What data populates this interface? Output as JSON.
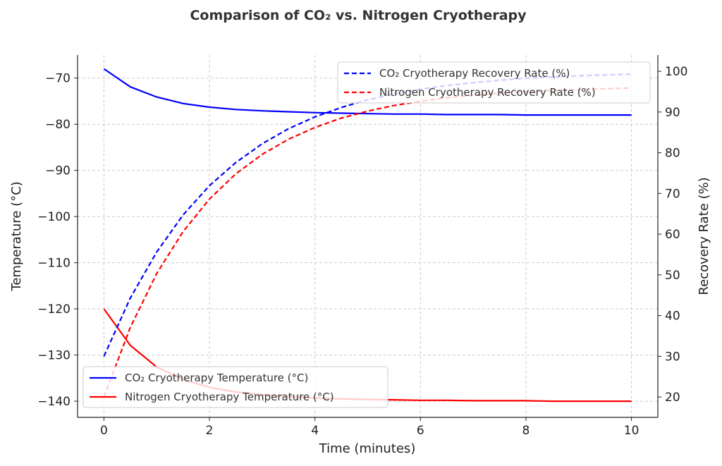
{
  "chart_data": {
    "type": "line",
    "title": "Comparison of CO₂ vs. Nitrogen Cryotherapy",
    "xlabel": "Time (minutes)",
    "ylabel_left": "Temperature (°C)",
    "ylabel_right": "Recovery Rate (%)",
    "xlim": [
      -0.5,
      10.5
    ],
    "ylim_left": [
      -143.5,
      -65
    ],
    "ylim_right": [
      15,
      104
    ],
    "x_ticks": [
      0,
      2,
      4,
      6,
      8,
      10
    ],
    "y_left_ticks": [
      -140,
      -130,
      -120,
      -110,
      -100,
      -90,
      -80,
      -70
    ],
    "y_right_ticks": [
      20,
      30,
      40,
      50,
      60,
      70,
      80,
      90,
      100
    ],
    "x_tick_labels": [
      "0",
      "2",
      "4",
      "6",
      "8",
      "10"
    ],
    "y_left_tick_labels": [
      "−140",
      "−130",
      "−120",
      "−110",
      "−100",
      "−90",
      "−80",
      "−70"
    ],
    "y_right_tick_labels": [
      "20",
      "30",
      "40",
      "50",
      "60",
      "70",
      "80",
      "90",
      "100"
    ],
    "grid": true,
    "x": [
      0,
      0.5,
      1,
      1.5,
      2,
      2.5,
      3,
      3.5,
      4,
      4.5,
      5,
      5.5,
      6,
      6.5,
      7,
      7.5,
      8,
      8.5,
      9,
      9.5,
      10
    ],
    "series": [
      {
        "name": "CO₂ Cryotherapy Temperature (°C)",
        "axis": "left",
        "style": "solid",
        "color": "#0000ff",
        "values": [
          -68,
          -71.9,
          -74.1,
          -75.5,
          -76.3,
          -76.8,
          -77.1,
          -77.3,
          -77.5,
          -77.6,
          -77.7,
          -77.8,
          -77.8,
          -77.9,
          -77.9,
          -77.9,
          -78,
          -78,
          -78,
          -78,
          -78
        ]
      },
      {
        "name": "Nitrogen Cryotherapy Temperature (°C)",
        "axis": "left",
        "style": "solid",
        "color": "#ff0000",
        "values": [
          -120,
          -127.9,
          -132.6,
          -135.3,
          -137.0,
          -138.0,
          -138.6,
          -139.0,
          -139.3,
          -139.5,
          -139.6,
          -139.7,
          -139.8,
          -139.8,
          -139.9,
          -139.9,
          -139.9,
          -140,
          -140,
          -140,
          -140
        ]
      },
      {
        "name": "CO₂ Cryotherapy Recovery Rate (%)",
        "axis": "right",
        "style": "dashed",
        "color": "#0000ff",
        "values": [
          30,
          44.3,
          55.6,
          64.7,
          71.9,
          77.6,
          82.2,
          85.9,
          88.8,
          91.1,
          93.0,
          94.4,
          95.6,
          96.5,
          97.2,
          97.8,
          98.3,
          98.6,
          98.9,
          99.1,
          99.3
        ]
      },
      {
        "name": "Nitrogen Cryotherapy Recovery Rate (%)",
        "axis": "right",
        "style": "dashed",
        "color": "#ff0000",
        "values": [
          20,
          37.1,
          50.3,
          60.6,
          68.6,
          74.8,
          79.6,
          83.3,
          86.2,
          88.5,
          90.2,
          91.6,
          92.6,
          93.5,
          94.1,
          94.6,
          95.0,
          95.3,
          95.5,
          95.7,
          95.9
        ]
      }
    ],
    "legend_upper": {
      "placement": "top-right",
      "entries": [
        "CO₂ Cryotherapy Recovery Rate (%)",
        "Nitrogen Cryotherapy Recovery Rate (%)"
      ]
    },
    "legend_lower": {
      "placement": "bottom-left",
      "entries": [
        "CO₂ Cryotherapy Temperature (°C)",
        "Nitrogen Cryotherapy Temperature (°C)"
      ]
    }
  }
}
